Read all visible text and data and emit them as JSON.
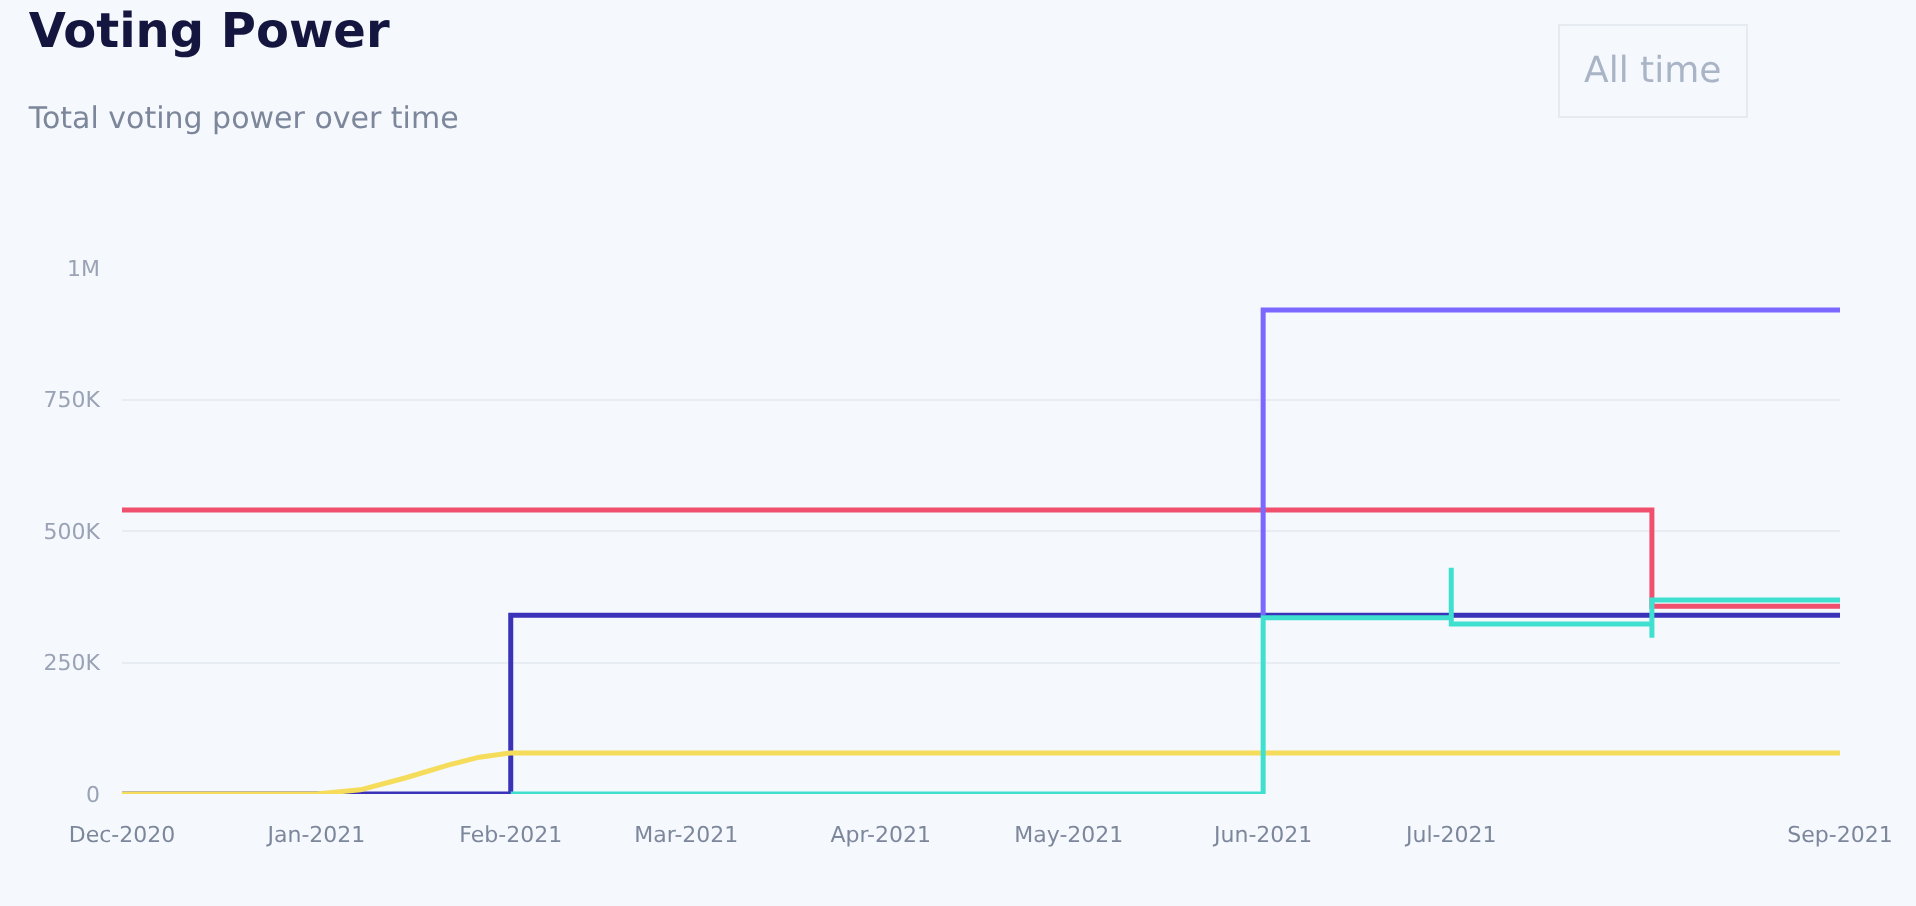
{
  "chart_data": {
    "type": "step",
    "title": "Voting Power",
    "subtitle": "Total voting power over time",
    "annotations": [
      "All time"
    ],
    "series": [
      {
        "color": "#f0506e",
        "x": [
          "2020-12-01",
          "2021-08-02",
          "2021-09-01"
        ],
        "values": [
          540000,
          357000,
          357000
        ]
      },
      {
        "color": "#3a32b8",
        "x": [
          "2020-12-01",
          "2021-02-01",
          "2021-09-01"
        ],
        "values": [
          0,
          340000,
          340000
        ]
      },
      {
        "type": "line",
        "color": "#f5dc5a",
        "x": [
          "2020-12-01",
          "2021-01-01",
          "2021-01-08",
          "2021-01-15",
          "2021-01-22",
          "2021-01-27",
          "2021-02-01",
          "2021-09-01"
        ],
        "values": [
          0,
          0,
          8000,
          30000,
          55000,
          70000,
          78000,
          78000
        ]
      },
      {
        "color": "#7b68ff",
        "x": [
          "2021-06-01",
          "2021-06-01",
          "2021-09-01"
        ],
        "values": [
          340000,
          920000,
          920000
        ]
      },
      {
        "color": "#40e0d0",
        "x": [
          "2021-02-01",
          "2021-06-01",
          "2021-07-01",
          "2021-07-01",
          "2021-08-02",
          "2021-08-02",
          "2021-09-01"
        ],
        "values": [
          0,
          335000,
          430000,
          323000,
          297000,
          369000,
          369000
        ]
      }
    ],
    "xlim": [
      "2020-12-01",
      "2021-09-01"
    ],
    "xticks": [
      {
        "value": "2020-12-01",
        "label": "Dec-2020"
      },
      {
        "value": "2021-01-01",
        "label": "Jan-2021"
      },
      {
        "value": "2021-02-01",
        "label": "Feb-2021"
      },
      {
        "value": "2021-03-01",
        "label": "Mar-2021"
      },
      {
        "value": "2021-04-01",
        "label": "Apr-2021"
      },
      {
        "value": "2021-05-01",
        "label": "May-2021"
      },
      {
        "value": "2021-06-01",
        "label": "Jun-2021"
      },
      {
        "value": "2021-07-01",
        "label": "Jul-2021"
      },
      {
        "value": "2021-09-01",
        "label": "Sep-2021"
      }
    ],
    "ylim": [
      0,
      1000000
    ],
    "yticks": [
      0,
      {
        "value": 250000,
        "label": "250K"
      },
      {
        "value": 500000,
        "label": "500K"
      },
      {
        "value": 750000,
        "label": "750K"
      },
      {
        "value": 1000000,
        "label": "1M"
      }
    ],
    "grid": "y",
    "marker": "none",
    "line_style": "solid"
  }
}
